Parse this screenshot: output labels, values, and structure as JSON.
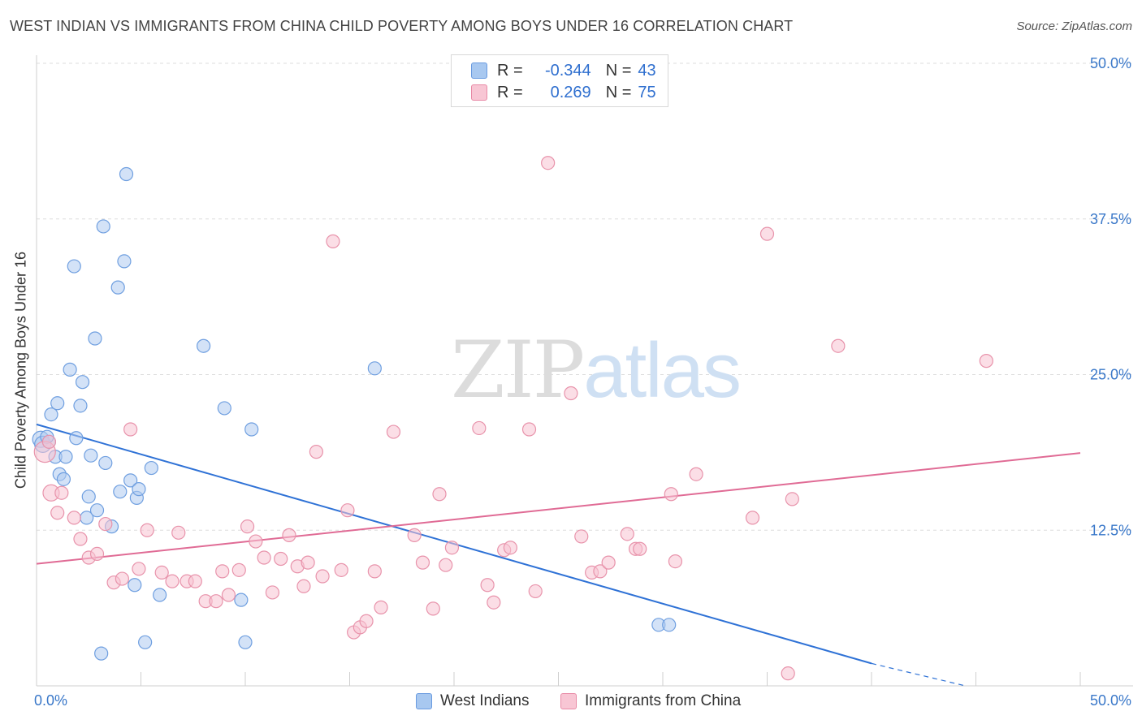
{
  "title": "WEST INDIAN VS IMMIGRANTS FROM CHINA CHILD POVERTY AMONG BOYS UNDER 16 CORRELATION CHART",
  "source": "Source: ZipAtlas.com",
  "watermark": {
    "zip": "ZIP",
    "atlas": "atlas"
  },
  "legend": {
    "rows": [
      {
        "r_label": "R =",
        "r_value": "-0.344",
        "n_label": "N =",
        "n_value": "43",
        "color": "#a8c8f0",
        "border": "#6a9be0"
      },
      {
        "r_label": "R =",
        "r_value": "0.269",
        "n_label": "N =",
        "n_value": "75",
        "color": "#f8c6d4",
        "border": "#e88aa6"
      }
    ]
  },
  "colors": {
    "blue_fill": "#aecbf0",
    "blue_stroke": "#6f9fe0",
    "blue_line": "#2f72d6",
    "pink_fill": "#f7c3d2",
    "pink_stroke": "#e893ab",
    "pink_line": "#e06b95",
    "tick_label": "#3a78c9",
    "grid": "#dedede"
  },
  "chart_data": {
    "type": "scatter",
    "title": "WEST INDIAN VS IMMIGRANTS FROM CHINA CHILD POVERTY AMONG BOYS UNDER 16 CORRELATION CHART",
    "xlabel": "",
    "ylabel": "Child Poverty Among Boys Under 16",
    "xlim": [
      0,
      50
    ],
    "ylim": [
      0,
      50
    ],
    "x_tick_labels": [
      {
        "value": 0,
        "label": "0.0%"
      },
      {
        "value": 50,
        "label": "50.0%"
      }
    ],
    "y_tick_labels": [
      {
        "value": 12.5,
        "label": "12.5%"
      },
      {
        "value": 25,
        "label": "25.0%"
      },
      {
        "value": 37.5,
        "label": "37.5%"
      },
      {
        "value": 50,
        "label": "50.0%"
      }
    ],
    "grid": true,
    "legend_position": "bottom",
    "series": [
      {
        "name": "West Indians",
        "r": -0.344,
        "n": 43,
        "trend": {
          "x": [
            0,
            40
          ],
          "y": [
            21.0,
            1.8
          ],
          "dashed_to": [
            44.5,
            0
          ]
        },
        "points": [
          [
            0.2,
            19.8,
            2
          ],
          [
            0.3,
            19.4,
            2
          ],
          [
            0.6,
            19.6,
            1
          ],
          [
            0.5,
            20.0,
            1
          ],
          [
            0.7,
            21.8,
            1
          ],
          [
            0.9,
            18.4,
            1
          ],
          [
            1.0,
            22.7,
            1
          ],
          [
            1.1,
            17.0,
            1
          ],
          [
            1.3,
            16.6,
            1
          ],
          [
            1.4,
            18.4,
            1
          ],
          [
            1.6,
            25.4,
            1
          ],
          [
            1.8,
            33.7,
            1
          ],
          [
            1.9,
            19.9,
            1
          ],
          [
            2.1,
            22.5,
            1
          ],
          [
            2.2,
            24.4,
            1
          ],
          [
            2.4,
            13.5,
            1
          ],
          [
            2.5,
            15.2,
            1
          ],
          [
            2.6,
            18.5,
            1
          ],
          [
            2.8,
            27.9,
            1
          ],
          [
            2.9,
            14.1,
            1
          ],
          [
            3.1,
            2.6,
            1
          ],
          [
            3.2,
            36.9,
            1
          ],
          [
            3.3,
            17.9,
            1
          ],
          [
            3.6,
            12.8,
            1
          ],
          [
            3.9,
            32.0,
            1
          ],
          [
            4.0,
            15.6,
            1
          ],
          [
            4.2,
            34.1,
            1
          ],
          [
            4.3,
            41.1,
            1
          ],
          [
            4.5,
            16.5,
            1
          ],
          [
            4.7,
            8.1,
            1
          ],
          [
            4.8,
            15.1,
            1
          ],
          [
            4.9,
            15.8,
            1
          ],
          [
            5.2,
            3.5,
            1
          ],
          [
            5.5,
            17.5,
            1
          ],
          [
            5.9,
            7.3,
            1
          ],
          [
            8.0,
            27.3,
            1
          ],
          [
            9.0,
            22.3,
            1
          ],
          [
            9.8,
            6.9,
            1
          ],
          [
            10.0,
            3.5,
            1
          ],
          [
            10.3,
            20.6,
            1
          ],
          [
            16.2,
            25.5,
            1
          ],
          [
            29.8,
            4.9,
            1
          ],
          [
            30.3,
            4.9,
            1
          ]
        ]
      },
      {
        "name": "Immigrants from China",
        "r": 0.269,
        "n": 75,
        "trend": {
          "x": [
            0,
            50
          ],
          "y": [
            9.8,
            18.7
          ]
        },
        "points": [
          [
            0.4,
            18.8,
            3
          ],
          [
            0.6,
            19.6,
            1
          ],
          [
            0.7,
            15.5,
            2
          ],
          [
            1.0,
            13.9,
            1
          ],
          [
            1.2,
            15.5,
            1
          ],
          [
            1.8,
            13.5,
            1
          ],
          [
            2.1,
            11.8,
            1
          ],
          [
            2.5,
            10.3,
            1
          ],
          [
            2.9,
            10.6,
            1
          ],
          [
            3.3,
            13.0,
            1
          ],
          [
            3.7,
            8.3,
            1
          ],
          [
            4.1,
            8.6,
            1
          ],
          [
            4.5,
            20.6,
            1
          ],
          [
            4.9,
            9.4,
            1
          ],
          [
            5.3,
            12.5,
            1
          ],
          [
            6.0,
            9.1,
            1
          ],
          [
            6.5,
            8.4,
            1
          ],
          [
            6.8,
            12.3,
            1
          ],
          [
            7.2,
            8.4,
            1
          ],
          [
            7.6,
            8.4,
            1
          ],
          [
            8.1,
            6.8,
            1
          ],
          [
            8.6,
            6.8,
            1
          ],
          [
            8.9,
            9.2,
            1
          ],
          [
            9.2,
            7.3,
            1
          ],
          [
            9.7,
            9.3,
            1
          ],
          [
            10.1,
            12.8,
            1
          ],
          [
            10.5,
            11.6,
            1
          ],
          [
            10.9,
            10.3,
            1
          ],
          [
            11.3,
            7.5,
            1
          ],
          [
            11.7,
            10.2,
            1
          ],
          [
            12.1,
            12.1,
            1
          ],
          [
            12.5,
            9.6,
            1
          ],
          [
            12.8,
            8.0,
            1
          ],
          [
            13.0,
            9.9,
            1
          ],
          [
            13.4,
            18.8,
            1
          ],
          [
            13.7,
            8.8,
            1
          ],
          [
            14.2,
            35.7,
            1
          ],
          [
            14.6,
            9.3,
            1
          ],
          [
            14.9,
            14.1,
            1
          ],
          [
            15.2,
            4.3,
            1
          ],
          [
            15.5,
            4.7,
            1
          ],
          [
            15.8,
            5.2,
            1
          ],
          [
            16.2,
            9.2,
            1
          ],
          [
            16.5,
            6.3,
            1
          ],
          [
            17.1,
            20.4,
            1
          ],
          [
            18.1,
            12.1,
            1
          ],
          [
            18.5,
            9.9,
            1
          ],
          [
            19.0,
            6.2,
            1
          ],
          [
            19.3,
            15.4,
            1
          ],
          [
            19.6,
            9.7,
            1
          ],
          [
            19.9,
            11.1,
            1
          ],
          [
            21.2,
            20.7,
            1
          ],
          [
            21.6,
            8.1,
            1
          ],
          [
            21.9,
            6.7,
            1
          ],
          [
            22.4,
            10.9,
            1
          ],
          [
            22.7,
            11.1,
            1
          ],
          [
            23.6,
            20.6,
            1
          ],
          [
            23.9,
            7.6,
            1
          ],
          [
            24.5,
            42.0,
            1
          ],
          [
            25.6,
            23.5,
            1
          ],
          [
            26.1,
            12.0,
            1
          ],
          [
            26.6,
            9.1,
            1
          ],
          [
            27.0,
            9.2,
            1
          ],
          [
            27.4,
            9.9,
            1
          ],
          [
            28.3,
            12.2,
            1
          ],
          [
            28.7,
            11.0,
            1
          ],
          [
            28.9,
            11.0,
            1
          ],
          [
            30.4,
            15.4,
            1
          ],
          [
            30.6,
            10.0,
            1
          ],
          [
            31.6,
            17.0,
            1
          ],
          [
            34.3,
            13.5,
            1
          ],
          [
            35.0,
            36.3,
            1
          ],
          [
            36.0,
            1.0,
            1
          ],
          [
            36.2,
            15.0,
            1
          ],
          [
            38.4,
            27.3,
            1
          ],
          [
            45.5,
            26.1,
            1
          ]
        ]
      }
    ]
  }
}
